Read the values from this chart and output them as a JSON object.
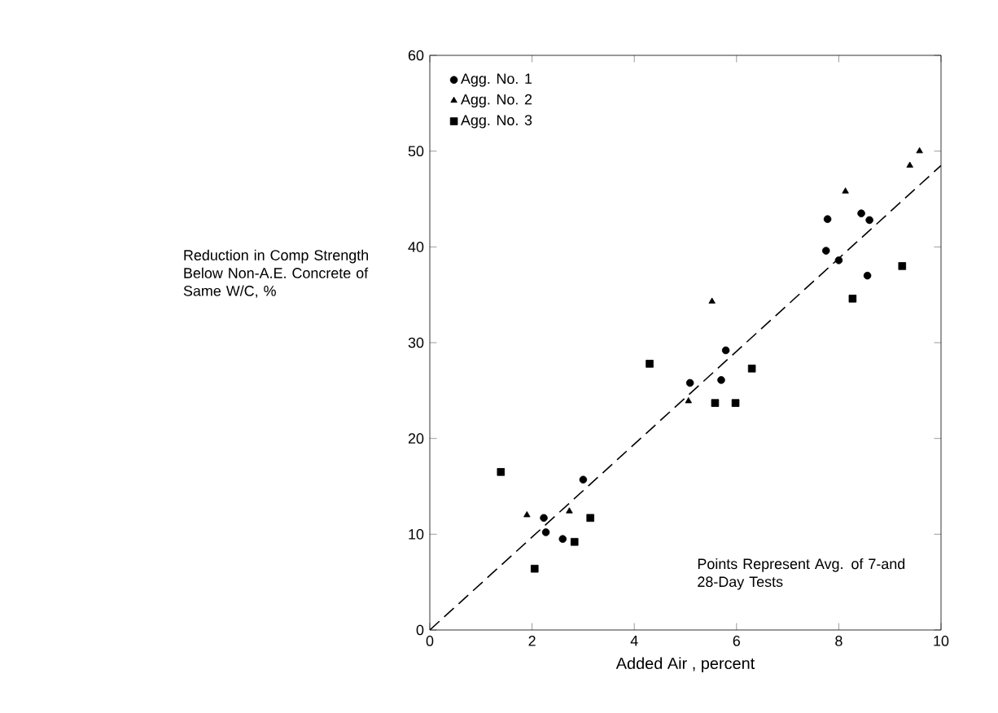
{
  "chart_data": {
    "type": "scatter",
    "xlabel": "Added Air , percent",
    "ylabel": "Reduction in Comp Strength Below Non-A.E. Concrete of Same W/C, %",
    "annotations": [
      "Points Represent Avg. of 7-and 28-Day Tests"
    ],
    "xlim": [
      0,
      10
    ],
    "ylim": [
      0,
      60
    ],
    "xticks": [
      0,
      2,
      4,
      6,
      8,
      10
    ],
    "yticks": [
      0,
      10,
      20,
      30,
      40,
      50,
      60
    ],
    "grid": false,
    "legend": "top left",
    "series": [
      {
        "name": "Agg. No. 1",
        "marker": "circle",
        "color": "#000000",
        "x": [
          2.23,
          2.27,
          2.6,
          3.0,
          5.09,
          5.7,
          5.79,
          7.78,
          7.75,
          8.0,
          8.44,
          8.6,
          8.56
        ],
        "values": [
          11.7,
          10.2,
          9.5,
          15.7,
          25.8,
          26.1,
          29.2,
          42.9,
          39.6,
          38.6,
          43.5,
          42.8,
          37.0
        ]
      },
      {
        "name": "Agg. No. 2",
        "marker": "triangle",
        "color": "#000000",
        "x": [
          1.9,
          2.73,
          5.06,
          5.52,
          8.13,
          9.39,
          9.58
        ],
        "values": [
          12.0,
          12.4,
          23.9,
          34.3,
          45.8,
          48.5,
          50.0
        ]
      },
      {
        "name": "Agg. No. 3",
        "marker": "square",
        "color": "#000000",
        "x": [
          1.39,
          2.05,
          2.83,
          3.14,
          4.3,
          5.58,
          5.98,
          6.3,
          8.27,
          9.24
        ],
        "values": [
          16.5,
          6.4,
          9.2,
          11.7,
          27.8,
          23.7,
          23.7,
          27.3,
          34.6,
          38.0
        ]
      },
      {
        "type": "line",
        "marker": "none",
        "line_style": "dashed",
        "color": "#000000",
        "x": [
          0,
          10
        ],
        "values": [
          0,
          48.5
        ]
      }
    ]
  }
}
